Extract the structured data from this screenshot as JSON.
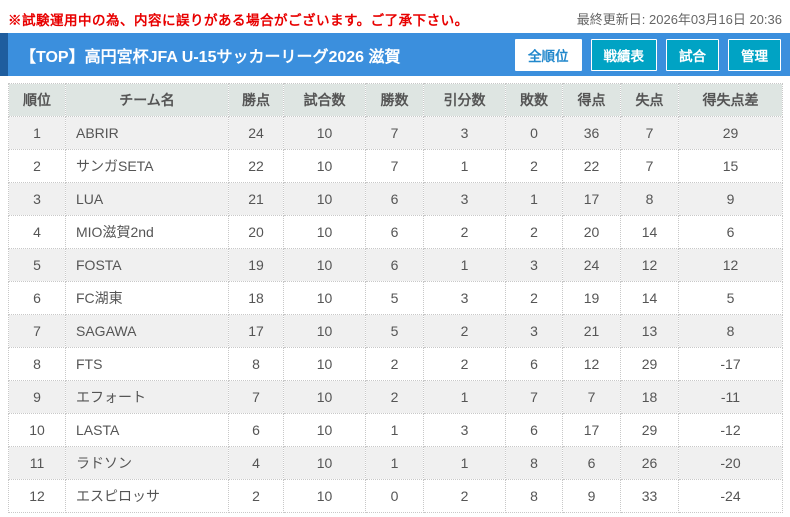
{
  "top_bar": {
    "warning": "※試験運用中の為、内容に誤りがある場合がございます。ご了承下さい。",
    "last_updated": "最終更新日: 2026年03月16日 20:36"
  },
  "header": {
    "title": "【TOP】高円宮杯JFA U-15サッカーリーグ2026 滋賀",
    "buttons": [
      {
        "label": "全順位",
        "active": true
      },
      {
        "label": "戦績表",
        "active": false
      },
      {
        "label": "試合",
        "active": false
      },
      {
        "label": "管理",
        "active": false
      }
    ]
  },
  "colors": {
    "accent_blue": "#3b8fdd",
    "accent_blue_dark": "#1e5d9e",
    "button_teal": "#00a3c4",
    "active_button_text": "#2288cc",
    "warning_red": "#e80000",
    "table_header_bg": "#dee5e2",
    "row_alt_bg": "#f0f0f0"
  },
  "table": {
    "columns": [
      "順位",
      "チーム名",
      "勝点",
      "試合数",
      "勝数",
      "引分数",
      "敗数",
      "得点",
      "失点",
      "得失点差"
    ],
    "rows": [
      [
        "1",
        "ABRIR",
        "24",
        "10",
        "7",
        "3",
        "0",
        "36",
        "7",
        "29"
      ],
      [
        "2",
        "サンガSETA",
        "22",
        "10",
        "7",
        "1",
        "2",
        "22",
        "7",
        "15"
      ],
      [
        "3",
        "LUA",
        "21",
        "10",
        "6",
        "3",
        "1",
        "17",
        "8",
        "9"
      ],
      [
        "4",
        "MIO滋賀2nd",
        "20",
        "10",
        "6",
        "2",
        "2",
        "20",
        "14",
        "6"
      ],
      [
        "5",
        "FOSTA",
        "19",
        "10",
        "6",
        "1",
        "3",
        "24",
        "12",
        "12"
      ],
      [
        "6",
        "FC湖東",
        "18",
        "10",
        "5",
        "3",
        "2",
        "19",
        "14",
        "5"
      ],
      [
        "7",
        "SAGAWA",
        "17",
        "10",
        "5",
        "2",
        "3",
        "21",
        "13",
        "8"
      ],
      [
        "8",
        "FTS",
        "8",
        "10",
        "2",
        "2",
        "6",
        "12",
        "29",
        "-17"
      ],
      [
        "9",
        "エフォート",
        "7",
        "10",
        "2",
        "1",
        "7",
        "7",
        "18",
        "-11"
      ],
      [
        "10",
        "LASTA",
        "6",
        "10",
        "1",
        "3",
        "6",
        "17",
        "29",
        "-12"
      ],
      [
        "11",
        "ラドソン",
        "4",
        "10",
        "1",
        "1",
        "8",
        "6",
        "26",
        "-20"
      ],
      [
        "12",
        "エスピロッサ",
        "2",
        "10",
        "0",
        "2",
        "8",
        "9",
        "33",
        "-24"
      ]
    ]
  }
}
